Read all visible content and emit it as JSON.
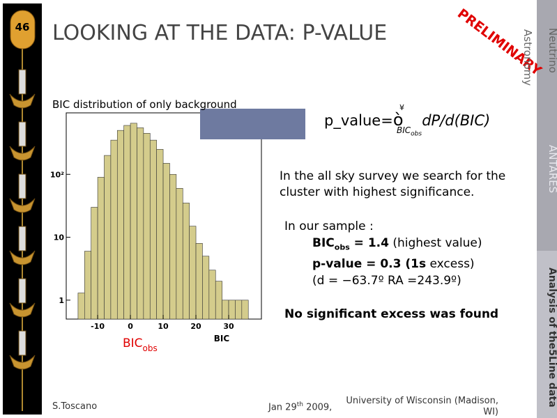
{
  "slide_number": "46",
  "title": "LOOKING AT THE DATA: P-VALUE",
  "stamp": "PRELIMINARY",
  "sidebar": {
    "neutrino": "Neutrino",
    "astronomy": "Astronomy",
    "antares": "ANTARES",
    "section": "Analysis of the5Line data"
  },
  "chart_data": {
    "type": "histogram",
    "title": "BIC distribution of only background",
    "xlabel": "BIC",
    "annotation": {
      "text": "BIC",
      "sub": "obs"
    },
    "bins": [
      -16,
      -14,
      -12,
      -10,
      -8,
      -6,
      -4,
      -2,
      0,
      2,
      4,
      6,
      8,
      10,
      12,
      14,
      16,
      18,
      20,
      22,
      24,
      26,
      28,
      30,
      32,
      34,
      36
    ],
    "values": [
      1.3,
      6,
      30,
      90,
      200,
      350,
      500,
      600,
      650,
      550,
      450,
      350,
      250,
      150,
      100,
      60,
      35,
      15,
      8,
      5,
      3,
      2,
      1,
      1,
      1,
      1
    ],
    "color": "#d4cc8c",
    "log_y": true,
    "xlim": [
      -19.6,
      40
    ],
    "ylim": [
      0.5,
      950
    ],
    "xticks": [
      -10,
      0,
      10,
      20,
      30
    ],
    "yticks": [
      1,
      10,
      {
        "value": 100,
        "label": "10²"
      }
    ]
  },
  "formula": {
    "lhs": "p_value",
    "eq": "=",
    "integral": "ò",
    "upper": "¥",
    "lower": "BIC",
    "lower_sub": "obs",
    "integrand": "dP/d(BIC)"
  },
  "body": {
    "intro": "In the all sky survey we search for the cluster with highest significance.",
    "sample_heading": "In our sample :",
    "line1": {
      "a": "BIC",
      "sub": "obs",
      "b": " = 1.4",
      "c": " (highest value)"
    },
    "line2": {
      "a": "p-value = 0.3 (1s",
      "b": " excess)"
    },
    "line3": "(d = −63.7º RA =243.9º)",
    "conclusion": "No significant excess was found"
  },
  "footer": {
    "author": "S.Toscano",
    "date": "Jan 29",
    "date_sup": "th",
    "year": " 2009,",
    "affiliation": "University of Wisconsin  (Madison, WI)"
  }
}
